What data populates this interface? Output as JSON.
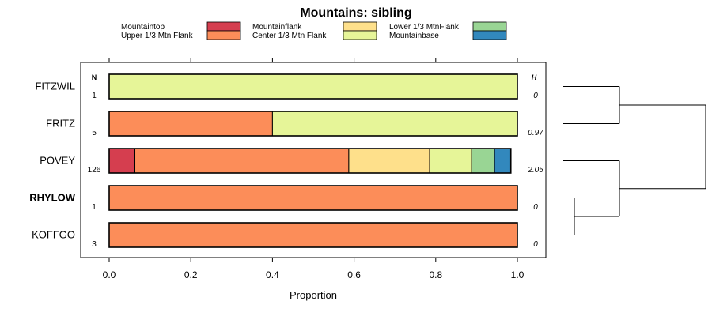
{
  "chart_data": {
    "type": "bar",
    "orientation": "horizontal",
    "stacked": true,
    "title": "Mountains: sibling",
    "xlabel": "Proportion",
    "xlim": [
      0,
      1
    ],
    "x_ticks": [
      "0.0",
      "0.2",
      "0.4",
      "0.6",
      "0.8",
      "1.0"
    ],
    "n_header": "N",
    "h_header": "H",
    "legend_placement": "top",
    "series": [
      {
        "name": "Mountaintop",
        "color": "#d53e4f"
      },
      {
        "name": "Upper 1/3 Mtn Flank",
        "color": "#fc8d59"
      },
      {
        "name": "Mountainflank",
        "color": "#fee08b"
      },
      {
        "name": "Center 1/3 Mtn Flank",
        "color": "#e6f598"
      },
      {
        "name": "Lower 1/3 MtnFlank",
        "color": "#99d594"
      },
      {
        "name": "Mountainbase",
        "color": "#3288bd"
      }
    ],
    "categories": [
      {
        "label": "FITZWIL",
        "bold": false,
        "n": "1",
        "h": "0",
        "values": [
          0,
          0,
          0,
          1.0,
          0,
          0
        ]
      },
      {
        "label": "FRITZ",
        "bold": false,
        "n": "5",
        "h": "0.97",
        "values": [
          0,
          0.4,
          0,
          0.6,
          0,
          0
        ]
      },
      {
        "label": "POVEY",
        "bold": false,
        "n": "126",
        "h": "2.05",
        "values": [
          0.063,
          0.524,
          0.198,
          0.103,
          0.056,
          0.04
        ]
      },
      {
        "label": "RHYLOW",
        "bold": true,
        "n": "1",
        "h": "0",
        "values": [
          0,
          1.0,
          0,
          0,
          0,
          0
        ]
      },
      {
        "label": "KOFFGO",
        "bold": false,
        "n": "3",
        "h": "0",
        "values": [
          0,
          1.0,
          0,
          0,
          0,
          0
        ]
      }
    ],
    "dendrogram": true
  }
}
